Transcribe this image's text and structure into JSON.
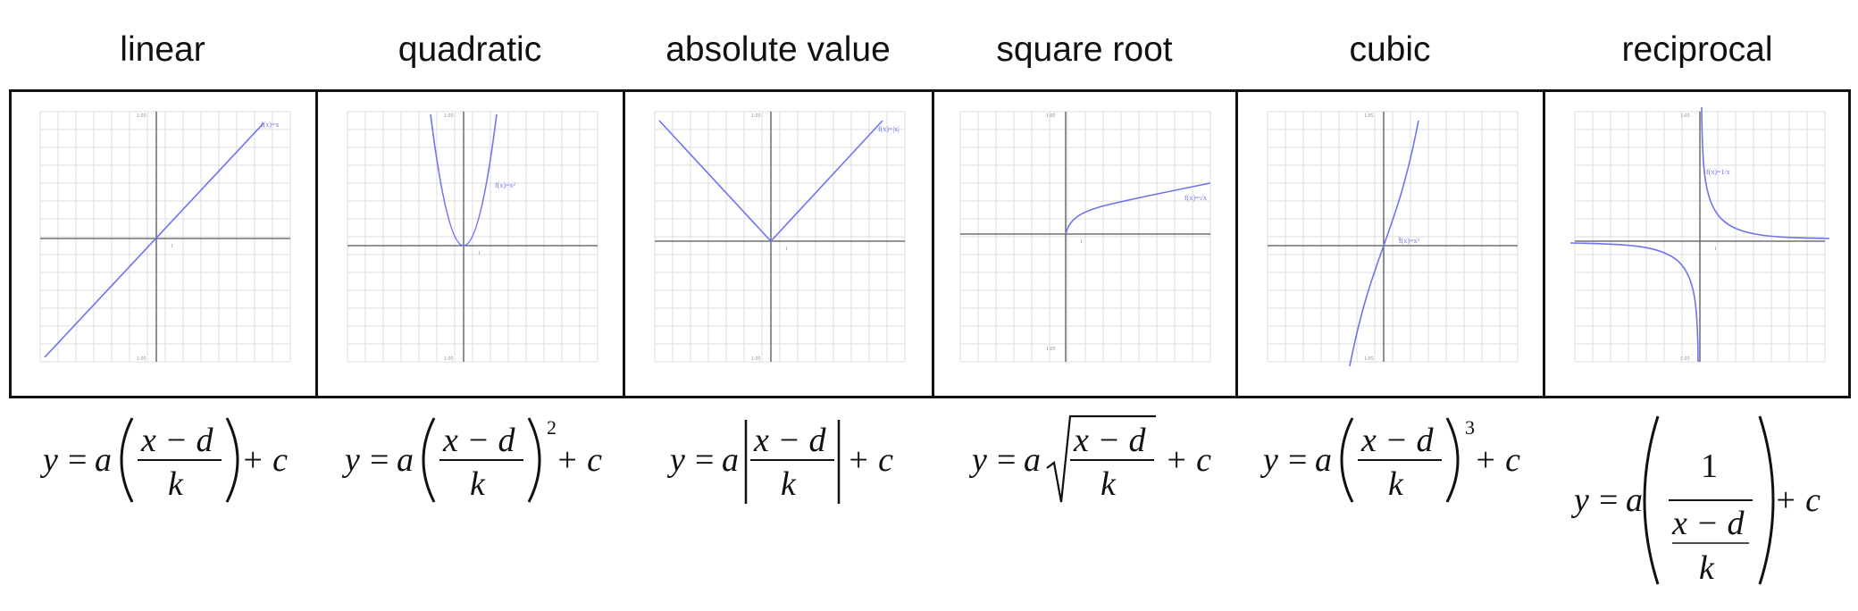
{
  "panels": [
    {
      "title": "linear",
      "func_label": "f(x)=x",
      "tick_top": "1.05",
      "tick_bottom": "1.05",
      "tick_one": "1",
      "color": "#6f73f0"
    },
    {
      "title": "quadratic",
      "func_label": "f(x)=x²",
      "tick_top": "1.05",
      "tick_bottom": "1.05",
      "tick_one": "1",
      "color": "#6f73f0"
    },
    {
      "title": "absolute value",
      "func_label": "f(x)=|x|",
      "tick_top": "1.05",
      "tick_bottom": "1.05",
      "tick_one": "1",
      "color": "#6f73f0"
    },
    {
      "title": "square root",
      "func_label": "f(x)=√x",
      "tick_top": "1.05",
      "tick_bottom": "1.05",
      "tick_one": "1",
      "color": "#6f73f0"
    },
    {
      "title": "cubic",
      "func_label": "f(x)=x³",
      "tick_top": "1.05",
      "tick_bottom": "1.05",
      "tick_one": "1",
      "color": "#6f73f0"
    },
    {
      "title": "reciprocal",
      "func_label": "f(x)=1/x",
      "tick_top": "1.05",
      "tick_bottom": "1.05",
      "tick_one": "1",
      "color": "#6f73f0"
    }
  ],
  "formula": {
    "y": "y",
    "eq": "=",
    "a": "a",
    "num": "x − d",
    "den": "k",
    "plus_c": "+ c",
    "one": "1",
    "sq": "2",
    "cube": "3"
  }
}
